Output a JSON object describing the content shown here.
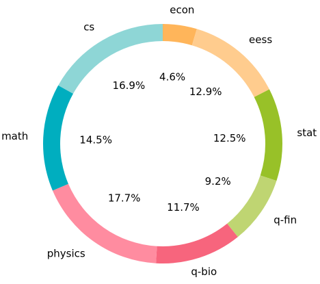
{
  "chart_data": {
    "type": "pie",
    "variant": "donut",
    "title": "",
    "direction": "clockwise",
    "start_angle_deg": 0,
    "slices": [
      {
        "label": "econ",
        "value": 4.6,
        "pct_label": "4.6%",
        "color": "#FFB55A"
      },
      {
        "label": "eess",
        "value": 12.9,
        "pct_label": "12.9%",
        "color": "#FFCC8E"
      },
      {
        "label": "stat",
        "value": 12.5,
        "pct_label": "12.5%",
        "color": "#98C128"
      },
      {
        "label": "q-fin",
        "value": 9.2,
        "pct_label": "9.2%",
        "color": "#BFD572"
      },
      {
        "label": "q-bio",
        "value": 11.7,
        "pct_label": "11.7%",
        "color": "#F7657D"
      },
      {
        "label": "physics",
        "value": 17.7,
        "pct_label": "17.7%",
        "color": "#FF8CA0"
      },
      {
        "label": "math",
        "value": 14.5,
        "pct_label": "14.5%",
        "color": "#00AEBF"
      },
      {
        "label": "cs",
        "value": 16.9,
        "pct_label": "16.9%",
        "color": "#8ED6D6"
      }
    ]
  }
}
